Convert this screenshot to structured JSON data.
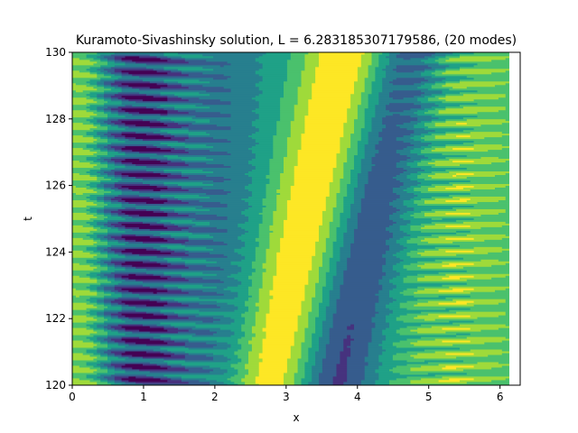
{
  "chart_data": {
    "type": "heatmap",
    "title": "Kuramoto-Sivashinsky solution, L = 6.283185307179586, (20 modes)",
    "xlabel": "x",
    "ylabel": "t",
    "xlim": [
      0,
      6.283185307179586
    ],
    "ylim": [
      120,
      130
    ],
    "data_xmax": 6.126,
    "x_ticks": [
      "0",
      "1",
      "2",
      "3",
      "4",
      "5",
      "6"
    ],
    "y_ticks": [
      "120",
      "122",
      "124",
      "126",
      "128",
      "130"
    ],
    "x_tick_values": [
      0,
      1,
      2,
      3,
      4,
      5,
      6
    ],
    "y_tick_values": [
      120,
      122,
      124,
      126,
      128,
      130
    ],
    "contour_levels": 8,
    "colormap": [
      "#440154",
      "#46327e",
      "#365c8d",
      "#277f8e",
      "#1fa187",
      "#4ac16d",
      "#9fda3a",
      "#fde725"
    ],
    "grid": false,
    "legend": "none"
  }
}
